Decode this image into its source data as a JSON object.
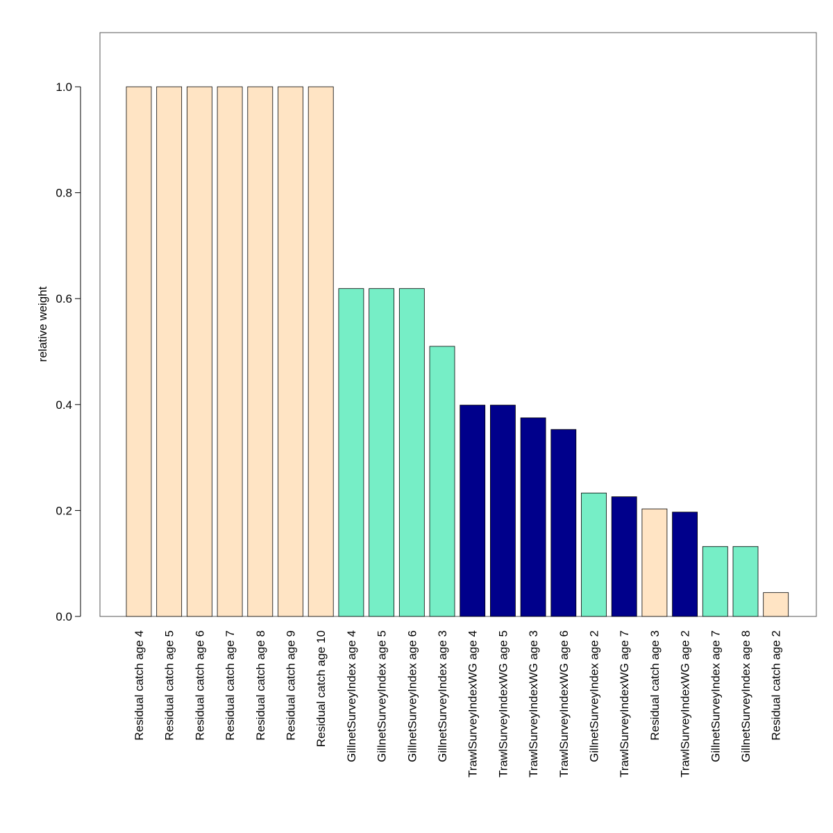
{
  "chart_data": {
    "type": "bar",
    "title": "",
    "xlabel": "",
    "ylabel": "relative weight",
    "ylim": [
      0,
      1.1
    ],
    "yticks": [
      0.0,
      0.2,
      0.4,
      0.6,
      0.8,
      1.0
    ],
    "ytick_labels": [
      "0.0",
      "0.2",
      "0.4",
      "0.6",
      "0.8",
      "1.0"
    ],
    "grid": false,
    "legend": "none",
    "categories": [
      "Residual catch age 4",
      "Residual catch age 5",
      "Residual catch age 6",
      "Residual catch age 7",
      "Residual catch age 8",
      "Residual catch age 9",
      "Residual catch age 10",
      "GillnetSurveyIndex age 4",
      "GillnetSurveyIndex age 5",
      "GillnetSurveyIndex age 6",
      "GillnetSurveyIndex age 3",
      "TrawlSurveyIndexWG age 4",
      "TrawlSurveyIndexWG age 5",
      "TrawlSurveyIndexWG age 3",
      "TrawlSurveyIndexWG age 6",
      "GillnetSurveyIndex age 2",
      "TrawlSurveyIndexWG age 7",
      "Residual catch age 3",
      "TrawlSurveyIndexWG age 2",
      "GillnetSurveyIndex age 7",
      "GillnetSurveyIndex age 8",
      "Residual catch age 2"
    ],
    "values": [
      1.0,
      1.0,
      1.0,
      1.0,
      1.0,
      1.0,
      1.0,
      0.619,
      0.619,
      0.619,
      0.51,
      0.399,
      0.399,
      0.375,
      0.353,
      0.233,
      0.226,
      0.203,
      0.197,
      0.132,
      0.132,
      0.045
    ],
    "bar_colors": [
      "#FFE4C4",
      "#FFE4C4",
      "#FFE4C4",
      "#FFE4C4",
      "#FFE4C4",
      "#FFE4C4",
      "#FFE4C4",
      "#76EEC6",
      "#76EEC6",
      "#76EEC6",
      "#76EEC6",
      "#00008B",
      "#00008B",
      "#00008B",
      "#00008B",
      "#76EEC6",
      "#00008B",
      "#FFE4C4",
      "#00008B",
      "#76EEC6",
      "#76EEC6",
      "#FFE4C4"
    ]
  }
}
